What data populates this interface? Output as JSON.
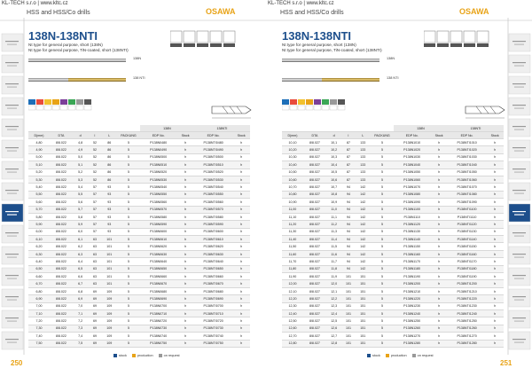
{
  "header": {
    "company": "KL-TECH s.r.o | www.kltc.cz",
    "section": "HSS and HSS/Co drills",
    "brand": "OSAWA"
  },
  "columns": [
    "D(mm)",
    "DTA",
    "d",
    "l",
    "L",
    "PACKUNG",
    "EDP No.",
    "Stock",
    "EDP No.",
    "Stock"
  ],
  "legend": [
    "stock",
    "production",
    "on request"
  ],
  "pages": [
    {
      "number": "250",
      "title": "138N-138NTI",
      "subtitle": [
        "Nt type for general purpose, short (138N)",
        "Nt type for general purpose, TiN-coated, short (138NTI)"
      ],
      "drills": [
        "138N",
        "138 NTI"
      ],
      "groups": [
        "138N",
        "138NTI"
      ],
      "rows": [
        [
          "4,80",
          "8/8.022",
          "4,8",
          "52",
          "86",
          "5",
          "P138N0480",
          "h",
          "P138NTI0480",
          "h"
        ],
        [
          "4,90",
          "8/8.022",
          "4,9",
          "52",
          "86",
          "5",
          "P138N0490",
          "h",
          "P138NTI0490",
          "h"
        ],
        [
          "5,00",
          "8/8.022",
          "5,0",
          "52",
          "86",
          "5",
          "P138N0500",
          "h",
          "P138NTI0500",
          "h"
        ],
        [
          "5,10",
          "8/8.022",
          "5,1",
          "52",
          "86",
          "5",
          "P138N0510",
          "h",
          "P138NTI0510",
          "h"
        ],
        [
          "5,20",
          "8/8.022",
          "5,2",
          "52",
          "86",
          "5",
          "P138N0520",
          "h",
          "P138NTI0520",
          "h"
        ],
        [
          "5,30",
          "8/8.022",
          "5,3",
          "52",
          "86",
          "5",
          "P138N0530",
          "h",
          "P138NTI0530",
          "h"
        ],
        [
          "5,40",
          "8/8.022",
          "5,4",
          "57",
          "93",
          "5",
          "P138N0540",
          "h",
          "P138NTI0540",
          "h"
        ],
        [
          "5,50",
          "8/8.022",
          "5,5",
          "57",
          "93",
          "5",
          "P138N0550",
          "h",
          "P138NTI0550",
          "h"
        ],
        [
          "5,60",
          "8/8.022",
          "5,6",
          "57",
          "93",
          "5",
          "P138N0560",
          "h",
          "P138NTI0560",
          "h"
        ],
        [
          "5,70",
          "8/8.022",
          "5,7",
          "57",
          "93",
          "5",
          "P138N0570",
          "h",
          "P138NTI0570",
          "h"
        ],
        [
          "5,80",
          "8/8.022",
          "5,8",
          "57",
          "93",
          "5",
          "P138N0580",
          "h",
          "P138NTI0580",
          "h"
        ],
        [
          "5,90",
          "8/8.022",
          "5,9",
          "57",
          "93",
          "5",
          "P138N0590",
          "h",
          "P138NTI0590",
          "h"
        ],
        [
          "6,00",
          "8/8.022",
          "6,0",
          "57",
          "93",
          "5",
          "P138N0600",
          "h",
          "P138NTI0600",
          "h"
        ],
        [
          "6,10",
          "8/8.022",
          "6,1",
          "63",
          "101",
          "5",
          "P138N0610",
          "h",
          "P138NTI0610",
          "h"
        ],
        [
          "6,20",
          "8/8.022",
          "6,2",
          "63",
          "101",
          "5",
          "P138N0620",
          "h",
          "P138NTI0620",
          "h"
        ],
        [
          "6,30",
          "8/8.022",
          "6,3",
          "63",
          "101",
          "5",
          "P138N0630",
          "h",
          "P138NTI0630",
          "h"
        ],
        [
          "6,40",
          "8/8.022",
          "6,4",
          "63",
          "101",
          "5",
          "P138N0640",
          "h",
          "P138NTI0640",
          "h"
        ],
        [
          "6,50",
          "8/8.022",
          "6,5",
          "63",
          "101",
          "5",
          "P138N0650",
          "h",
          "P138NTI0650",
          "h"
        ],
        [
          "6,60",
          "8/8.022",
          "6,6",
          "63",
          "101",
          "5",
          "P138N0660",
          "h",
          "P138NTI0660",
          "h"
        ],
        [
          "6,70",
          "8/8.022",
          "6,7",
          "63",
          "101",
          "5",
          "P138N0670",
          "h",
          "P138NTI0670",
          "h"
        ],
        [
          "6,80",
          "8/8.022",
          "6,8",
          "69",
          "109",
          "5",
          "P138N0680",
          "h",
          "P138NTI0680",
          "h"
        ],
        [
          "6,90",
          "8/8.022",
          "6,9",
          "69",
          "109",
          "5",
          "P138N0690",
          "h",
          "P138NTI0690",
          "h"
        ],
        [
          "7,00",
          "8/8.022",
          "7,0",
          "69",
          "109",
          "5",
          "P138N0700",
          "h",
          "P138NTI0700",
          "h"
        ],
        [
          "7,10",
          "8/8.022",
          "7,1",
          "69",
          "109",
          "5",
          "P138N0710",
          "h",
          "P138NTI0710",
          "h"
        ],
        [
          "7,20",
          "8/8.022",
          "7,2",
          "69",
          "109",
          "5",
          "P138N0720",
          "h",
          "P138NTI0720",
          "h"
        ],
        [
          "7,30",
          "8/8.022",
          "7,3",
          "69",
          "109",
          "5",
          "P138N0730",
          "h",
          "P138NTI0730",
          "h"
        ],
        [
          "7,40",
          "8/8.022",
          "7,4",
          "69",
          "109",
          "5",
          "P138N0740",
          "h",
          "P138NTI0740",
          "h"
        ],
        [
          "7,50",
          "8/8.022",
          "7,5",
          "69",
          "109",
          "5",
          "P138N0750",
          "h",
          "P138NTI0750",
          "h"
        ]
      ]
    },
    {
      "number": "251",
      "title": "138N-138NTI",
      "subtitle": [
        "Nt type for general purpose, short (138N)",
        "Nt type for general purpose, TiN-coated, short (138NTI)"
      ],
      "drills": [
        "138N",
        "138 NTI"
      ],
      "groups": [
        "138N",
        "138NTI"
      ],
      "rows": [
        [
          "10,10",
          "8/8.027",
          "10,1",
          "87",
          "133",
          "5",
          "P138N1010",
          "h",
          "P138NTI1010",
          "h"
        ],
        [
          "10,20",
          "8/8.027",
          "10,2",
          "87",
          "133",
          "5",
          "P138N1020",
          "h",
          "P138NTI1020",
          "h"
        ],
        [
          "10,30",
          "8/8.027",
          "10,3",
          "87",
          "133",
          "5",
          "P138N1030",
          "h",
          "P138NTI1030",
          "h"
        ],
        [
          "10,40",
          "8/8.027",
          "10,4",
          "87",
          "133",
          "5",
          "P138N1040",
          "h",
          "P138NTI1040",
          "h"
        ],
        [
          "10,50",
          "8/8.027",
          "10,5",
          "87",
          "133",
          "5",
          "P138N1050",
          "h",
          "P138NTI1050",
          "h"
        ],
        [
          "10,60",
          "8/8.027",
          "10,6",
          "87",
          "133",
          "5",
          "P138N1060",
          "h",
          "P138NTI1060",
          "h"
        ],
        [
          "10,70",
          "8/8.027",
          "10,7",
          "94",
          "142",
          "5",
          "P138N1070",
          "h",
          "P138NTI1070",
          "h"
        ],
        [
          "10,80",
          "8/8.027",
          "10,8",
          "94",
          "142",
          "5",
          "P138N1080",
          "h",
          "P138NTI1080",
          "h"
        ],
        [
          "10,90",
          "8/8.027",
          "10,9",
          "94",
          "142",
          "5",
          "P138N1090",
          "h",
          "P138NTI1090",
          "h"
        ],
        [
          "11,00",
          "8/8.027",
          "11,0",
          "94",
          "142",
          "5",
          "P138N1100",
          "h",
          "P138NTI1100",
          "h"
        ],
        [
          "11,10",
          "8/8.027",
          "11,1",
          "94",
          "142",
          "5",
          "P138N1110",
          "h",
          "P138NTI1110",
          "h"
        ],
        [
          "11,20",
          "8/8.027",
          "11,2",
          "94",
          "142",
          "5",
          "P138N1120",
          "h",
          "P138NTI1120",
          "h"
        ],
        [
          "11,30",
          "8/8.027",
          "11,3",
          "94",
          "142",
          "5",
          "P138N1130",
          "h",
          "P138NTI1130",
          "h"
        ],
        [
          "11,40",
          "8/8.027",
          "11,4",
          "94",
          "142",
          "5",
          "P138N1140",
          "h",
          "P138NTI1140",
          "h"
        ],
        [
          "11,50",
          "8/8.027",
          "11,5",
          "94",
          "142",
          "5",
          "P138N1150",
          "h",
          "P138NTI1150",
          "h"
        ],
        [
          "11,60",
          "8/8.027",
          "11,6",
          "94",
          "142",
          "5",
          "P138N1160",
          "h",
          "P138NTI1160",
          "h"
        ],
        [
          "11,70",
          "8/8.027",
          "11,7",
          "94",
          "142",
          "5",
          "P138N1170",
          "h",
          "P138NTI1170",
          "h"
        ],
        [
          "11,80",
          "8/8.027",
          "11,8",
          "94",
          "142",
          "5",
          "P138N1180",
          "h",
          "P138NTI1180",
          "h"
        ],
        [
          "11,90",
          "8/8.027",
          "11,9",
          "101",
          "151",
          "5",
          "P138N1190",
          "h",
          "P138NTI1190",
          "h"
        ],
        [
          "12,00",
          "8/8.027",
          "12,0",
          "101",
          "151",
          "5",
          "P138N1200",
          "h",
          "P138NTI1200",
          "h"
        ],
        [
          "12,10",
          "8/8.027",
          "12,1",
          "101",
          "151",
          "5",
          "P138N1210",
          "h",
          "P138NTI1210",
          "h"
        ],
        [
          "12,20",
          "8/8.027",
          "12,2",
          "101",
          "151",
          "5",
          "P138N1220",
          "h",
          "P138NTI1220",
          "h"
        ],
        [
          "12,30",
          "8/8.027",
          "12,3",
          "101",
          "151",
          "5",
          "P138N1230",
          "h",
          "P138NTI1230",
          "h"
        ],
        [
          "12,40",
          "8/8.027",
          "12,4",
          "101",
          "151",
          "5",
          "P138N1240",
          "h",
          "P138NTI1240",
          "h"
        ],
        [
          "12,50",
          "8/8.027",
          "12,5",
          "101",
          "151",
          "5",
          "P138N1250",
          "h",
          "P138NTI1250",
          "h"
        ],
        [
          "12,60",
          "8/8.027",
          "12,6",
          "101",
          "151",
          "5",
          "P138N1260",
          "h",
          "P138NTI1260",
          "h"
        ],
        [
          "12,70",
          "8/8.027",
          "12,7",
          "101",
          "151",
          "5",
          "P138N1270",
          "h",
          "P138NTI1270",
          "h"
        ],
        [
          "12,80",
          "8/8.027",
          "12,8",
          "101",
          "151",
          "5",
          "P138N1280",
          "h",
          "P138NTI1280",
          "h"
        ]
      ]
    }
  ]
}
